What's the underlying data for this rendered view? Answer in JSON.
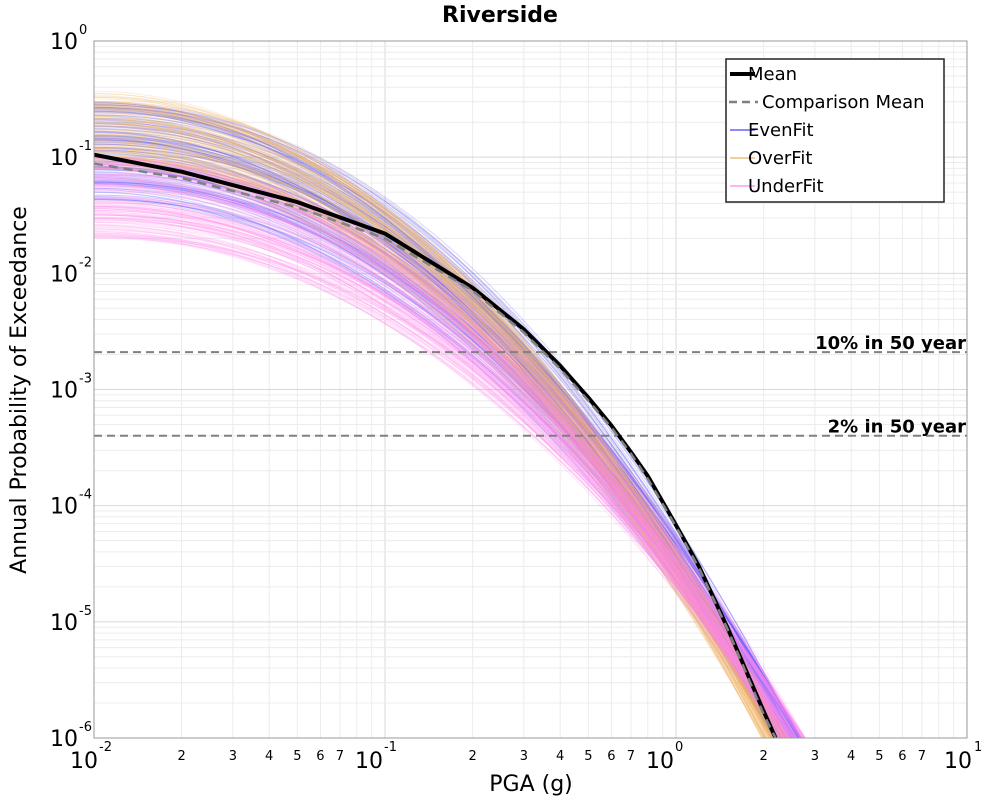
{
  "chart_data": {
    "type": "line",
    "title": "Riverside",
    "xlabel": "PGA (g)",
    "ylabel": "Annual Probability of Exceedance",
    "x_scale": "log",
    "y_scale": "log",
    "xlim": [
      0.01,
      10
    ],
    "ylim": [
      1e-06,
      1
    ],
    "grid": true,
    "legend_position": "top-right",
    "x_major_ticks": [
      {
        "base": "10",
        "exp": "-2"
      },
      {
        "base": "10",
        "exp": "-1"
      },
      {
        "base": "10",
        "exp": "0"
      },
      {
        "base": "10",
        "exp": "1"
      }
    ],
    "y_major_ticks": [
      {
        "base": "10",
        "exp": "0"
      },
      {
        "base": "10",
        "exp": "-1"
      },
      {
        "base": "10",
        "exp": "-2"
      },
      {
        "base": "10",
        "exp": "-3"
      },
      {
        "base": "10",
        "exp": "-4"
      },
      {
        "base": "10",
        "exp": "-5"
      },
      {
        "base": "10",
        "exp": "-6"
      }
    ],
    "x_minor_tick_labels": [
      "2",
      "3",
      "4",
      "5",
      "6",
      "7"
    ],
    "series": [
      {
        "name": "Mean",
        "color": "#000000",
        "style": "solid",
        "x": [
          0.01,
          0.02,
          0.05,
          0.1,
          0.2,
          0.3,
          0.4,
          0.5,
          0.6,
          0.7,
          0.8,
          1.0,
          1.2,
          1.5,
          2.0,
          2.2
        ],
        "y": [
          0.105,
          0.075,
          0.041,
          0.022,
          0.0075,
          0.0033,
          0.0016,
          0.00085,
          0.00049,
          0.00029,
          0.00018,
          6.8e-05,
          3e-05,
          9e-06,
          1.7e-06,
          1e-06
        ]
      },
      {
        "name": "Comparison Mean",
        "color": "#808080",
        "style": "dashed",
        "x": [
          0.01,
          0.02,
          0.05,
          0.1,
          0.2,
          0.3,
          0.4,
          0.5,
          0.6,
          0.7,
          0.8,
          1.0,
          1.2,
          1.5,
          2.0,
          2.2
        ],
        "y": [
          0.088,
          0.066,
          0.037,
          0.02,
          0.0071,
          0.0031,
          0.0015,
          0.0008,
          0.00047,
          0.00028,
          0.00017,
          6.6e-05,
          2.9e-05,
          8.8e-06,
          1.6e-06,
          1e-06
        ]
      },
      {
        "name": "EvenFit",
        "color": "#4444ff",
        "style": "band",
        "y_at_0.01_range": [
          0.04,
          0.3
        ],
        "x_at_1e-6_range": [
          2.0,
          2.8
        ]
      },
      {
        "name": "OverFit",
        "color": "#f0b060",
        "style": "band",
        "y_at_0.01_range": [
          0.08,
          0.37
        ],
        "x_at_1e-6_range": [
          1.85,
          2.5
        ]
      },
      {
        "name": "UnderFit",
        "color": "#ff88ee",
        "style": "band",
        "y_at_0.01_range": [
          0.02,
          0.1
        ],
        "x_at_1e-6_range": [
          2.1,
          2.9
        ]
      }
    ],
    "reference_lines": [
      {
        "label": "10% in 50 year",
        "y": 0.0021,
        "color": "#808080",
        "style": "dashed"
      },
      {
        "label": "2% in 50 year",
        "y": 0.0004,
        "color": "#808080",
        "style": "dashed"
      }
    ]
  }
}
